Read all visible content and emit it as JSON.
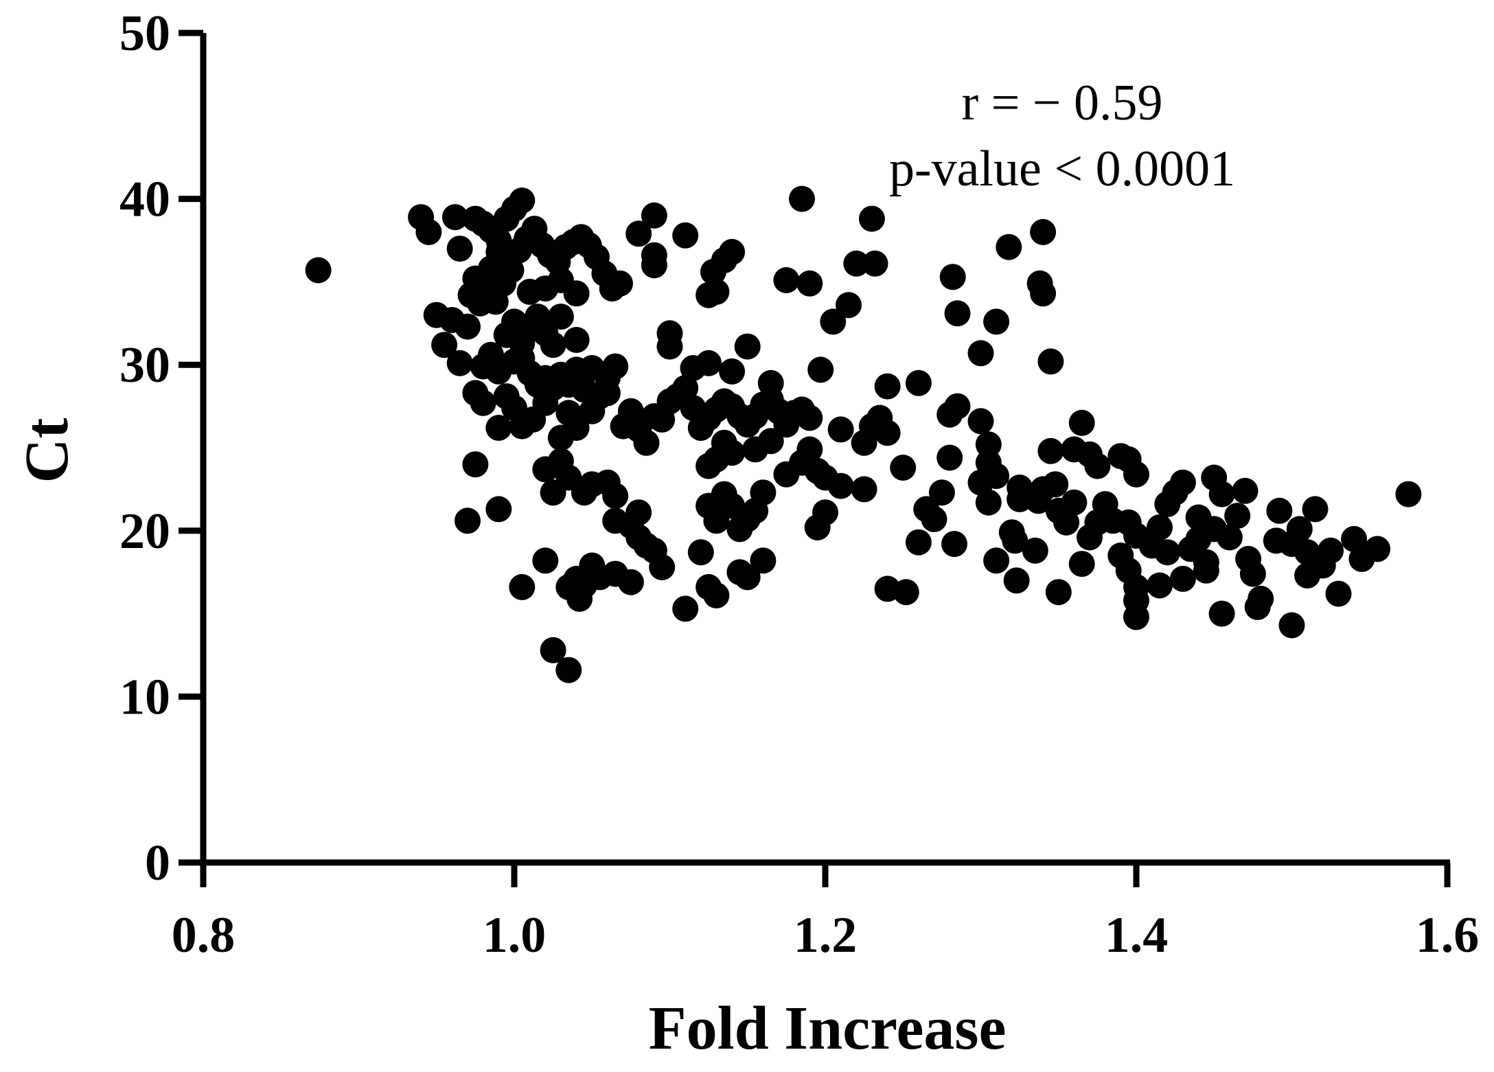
{
  "chart_data": {
    "type": "scatter",
    "xlabel": "Fold Increase",
    "ylabel": "Ct",
    "xlim": [
      0.8,
      1.6
    ],
    "ylim": [
      0,
      50
    ],
    "xticks": [
      "0.8",
      "1.0",
      "1.2",
      "1.4",
      "1.6"
    ],
    "yticks": [
      "0",
      "10",
      "20",
      "30",
      "40",
      "50"
    ],
    "grid": false,
    "point_color": "#000000",
    "annotations": [
      "r = − 0.59",
      "p-value < 0.0001"
    ],
    "points": [
      [
        0.874,
        35.7
      ],
      [
        0.94,
        38.9
      ],
      [
        0.945,
        38
      ],
      [
        0.962,
        38.9
      ],
      [
        0.965,
        37
      ],
      [
        0.975,
        38.8
      ],
      [
        0.98,
        38.5
      ],
      [
        0.985,
        38.1
      ],
      [
        0.99,
        37.5
      ],
      [
        0.995,
        38.8
      ],
      [
        1.0,
        39.4
      ],
      [
        1.005,
        39.9
      ],
      [
        0.99,
        36.8
      ],
      [
        0.985,
        35.8
      ],
      [
        0.98,
        34.9
      ],
      [
        0.975,
        35.2
      ],
      [
        0.972,
        34.2
      ],
      [
        0.978,
        33.7
      ],
      [
        0.988,
        33.8
      ],
      [
        0.993,
        34.9
      ],
      [
        0.998,
        35.7
      ],
      [
        1.003,
        36.9
      ],
      [
        1.008,
        37.6
      ],
      [
        1.013,
        38.2
      ],
      [
        1.018,
        37.2
      ],
      [
        1.023,
        36.6
      ],
      [
        1.028,
        36.2
      ],
      [
        1.033,
        37.1
      ],
      [
        1.038,
        37.4
      ],
      [
        1.043,
        37.7
      ],
      [
        1.048,
        37.2
      ],
      [
        1.053,
        36.5
      ],
      [
        1.058,
        35.5
      ],
      [
        1.063,
        34.6
      ],
      [
        1.068,
        34.9
      ],
      [
        1.04,
        34.3
      ],
      [
        1.03,
        35.1
      ],
      [
        1.02,
        34.6
      ],
      [
        1.01,
        34.4
      ],
      [
        1.0,
        32.6
      ],
      [
        0.995,
        31.8
      ],
      [
        1.005,
        31.3
      ],
      [
        1.01,
        32.2
      ],
      [
        1.015,
        32.9
      ],
      [
        1.02,
        31.9
      ],
      [
        1.025,
        31.2
      ],
      [
        1.03,
        32.9
      ],
      [
        1.0,
        30.2
      ],
      [
        0.99,
        29.6
      ],
      [
        0.985,
        30.6
      ],
      [
        0.98,
        29.9
      ],
      [
        1.005,
        30.4
      ],
      [
        1.01,
        29.5
      ],
      [
        1.015,
        28.8
      ],
      [
        1.02,
        29.2
      ],
      [
        1.025,
        28.6
      ],
      [
        1.03,
        29.4
      ],
      [
        1.035,
        28.8
      ],
      [
        1.04,
        29.7
      ],
      [
        1.045,
        28.5
      ],
      [
        1.05,
        29.8
      ],
      [
        1.055,
        28.1
      ],
      [
        1.06,
        29.2
      ],
      [
        1.065,
        29.9
      ],
      [
        1.04,
        31.5
      ],
      [
        0.95,
        33
      ],
      [
        0.955,
        31.2
      ],
      [
        0.96,
        32.7
      ],
      [
        0.965,
        30.1
      ],
      [
        0.97,
        32.3
      ],
      [
        0.975,
        28.3
      ],
      [
        0.98,
        27.7
      ],
      [
        0.99,
        26.2
      ],
      [
        0.995,
        28.1
      ],
      [
        1.0,
        27.4
      ],
      [
        1.005,
        26.3
      ],
      [
        1.012,
        26.7
      ],
      [
        1.02,
        27.7
      ],
      [
        1.03,
        25.6
      ],
      [
        1.035,
        27.1
      ],
      [
        1.04,
        26.2
      ],
      [
        1.05,
        27.2
      ],
      [
        1.06,
        28.3
      ],
      [
        1.07,
        26.3
      ],
      [
        1.075,
        27.2
      ],
      [
        1.08,
        26.1
      ],
      [
        1.085,
        25.3
      ],
      [
        1.09,
        26.9
      ],
      [
        1.095,
        26.7
      ],
      [
        1.1,
        27.8
      ],
      [
        1.105,
        28.1
      ],
      [
        1.11,
        28.6
      ],
      [
        1.115,
        27.4
      ],
      [
        1.12,
        26.2
      ],
      [
        1.125,
        26.8
      ],
      [
        1.13,
        27.3
      ],
      [
        1.135,
        27.8
      ],
      [
        1.14,
        27.5
      ],
      [
        1.145,
        26.9
      ],
      [
        1.15,
        26.4
      ],
      [
        1.155,
        26.9
      ],
      [
        1.16,
        27.6
      ],
      [
        1.165,
        27.9
      ],
      [
        1.17,
        27.2
      ],
      [
        1.175,
        26.4
      ],
      [
        1.18,
        27.1
      ],
      [
        1.185,
        27.3
      ],
      [
        1.19,
        26.8
      ],
      [
        1.165,
        28.9
      ],
      [
        1.1,
        31.9
      ],
      [
        1.1,
        31.1
      ],
      [
        1.115,
        29.8
      ],
      [
        1.125,
        30.1
      ],
      [
        1.14,
        29.6
      ],
      [
        1.15,
        31.1
      ],
      [
        1.08,
        37.9
      ],
      [
        1.09,
        39
      ],
      [
        1.09,
        36.6
      ],
      [
        1.09,
        36
      ],
      [
        1.11,
        37.8
      ],
      [
        1.125,
        34.2
      ],
      [
        1.128,
        35.6
      ],
      [
        1.13,
        34.4
      ],
      [
        1.135,
        36.3
      ],
      [
        1.14,
        36.8
      ],
      [
        1.175,
        35.1
      ],
      [
        1.185,
        40
      ],
      [
        1.19,
        34.9
      ],
      [
        1.205,
        32.6
      ],
      [
        1.215,
        33.6
      ],
      [
        1.22,
        36.1
      ],
      [
        1.23,
        38.8
      ],
      [
        1.232,
        36.1
      ],
      [
        1.197,
        29.7
      ],
      [
        0.975,
        24
      ],
      [
        0.97,
        20.6
      ],
      [
        0.99,
        21.3
      ],
      [
        1.02,
        23.7
      ],
      [
        1.025,
        22.3
      ],
      [
        1.03,
        24.2
      ],
      [
        1.035,
        23.2
      ],
      [
        1.045,
        22.3
      ],
      [
        1.05,
        22.8
      ],
      [
        1.06,
        22.9
      ],
      [
        1.065,
        22.1
      ],
      [
        1.065,
        20.6
      ],
      [
        1.075,
        20.3
      ],
      [
        1.08,
        21.1
      ],
      [
        1.08,
        19.6
      ],
      [
        1.085,
        19.1
      ],
      [
        1.09,
        18.8
      ],
      [
        1.095,
        17.8
      ],
      [
        1.12,
        18.7
      ],
      [
        1.125,
        21.5
      ],
      [
        1.13,
        20.6
      ],
      [
        1.135,
        22.2
      ],
      [
        1.14,
        21.5
      ],
      [
        1.145,
        20.1
      ],
      [
        1.15,
        20.7
      ],
      [
        1.155,
        21.2
      ],
      [
        1.16,
        22.3
      ],
      [
        1.125,
        23.9
      ],
      [
        1.13,
        24.3
      ],
      [
        1.135,
        25.3
      ],
      [
        1.14,
        24.7
      ],
      [
        1.155,
        24.9
      ],
      [
        1.165,
        25.4
      ],
      [
        1.175,
        23.4
      ],
      [
        1.185,
        24.1
      ],
      [
        1.19,
        24.9
      ],
      [
        1.195,
        23.6
      ],
      [
        1.2,
        23.2
      ],
      [
        1.21,
        22.7
      ],
      [
        1.225,
        22.5
      ],
      [
        1.21,
        26.1
      ],
      [
        1.225,
        25.3
      ],
      [
        1.23,
        26.3
      ],
      [
        1.235,
        26.8
      ],
      [
        1.24,
        25.9
      ],
      [
        1.24,
        28.7
      ],
      [
        1.2,
        21.1
      ],
      [
        1.195,
        20.2
      ],
      [
        1.02,
        18.2
      ],
      [
        1.005,
        16.6
      ],
      [
        1.025,
        12.8
      ],
      [
        1.035,
        11.6
      ],
      [
        1.035,
        16.6
      ],
      [
        1.04,
        17.1
      ],
      [
        1.042,
        15.9
      ],
      [
        1.045,
        16.7
      ],
      [
        1.05,
        17.9
      ],
      [
        1.055,
        17.2
      ],
      [
        1.065,
        17.4
      ],
      [
        1.075,
        16.9
      ],
      [
        1.11,
        15.3
      ],
      [
        1.125,
        16.6
      ],
      [
        1.13,
        16.1
      ],
      [
        1.15,
        17.2
      ],
      [
        1.16,
        18.2
      ],
      [
        1.145,
        17.5
      ],
      [
        1.24,
        16.5
      ],
      [
        1.252,
        16.3
      ],
      [
        1.25,
        23.8
      ],
      [
        1.26,
        28.9
      ],
      [
        1.26,
        19.3
      ],
      [
        1.265,
        21.3
      ],
      [
        1.27,
        20.7
      ],
      [
        1.275,
        22.3
      ],
      [
        1.28,
        24.4
      ],
      [
        1.28,
        27
      ],
      [
        1.285,
        27.5
      ],
      [
        1.282,
        35.3
      ],
      [
        1.285,
        33.1
      ],
      [
        1.283,
        19.2
      ],
      [
        1.3,
        30.7
      ],
      [
        1.3,
        26.6
      ],
      [
        1.305,
        25.2
      ],
      [
        1.305,
        24.1
      ],
      [
        1.3,
        22.9
      ],
      [
        1.305,
        21.7
      ],
      [
        1.31,
        23.3
      ],
      [
        1.31,
        18.2
      ],
      [
        1.31,
        32.6
      ],
      [
        1.318,
        37.1
      ],
      [
        1.325,
        22.6
      ],
      [
        1.325,
        21.9
      ],
      [
        1.32,
        19.9
      ],
      [
        1.322,
        19.4
      ],
      [
        1.323,
        17
      ],
      [
        1.335,
        18.8
      ],
      [
        1.337,
        21.8
      ],
      [
        1.34,
        22.5
      ],
      [
        1.34,
        38
      ],
      [
        1.338,
        34.9
      ],
      [
        1.34,
        34.3
      ],
      [
        1.345,
        30.2
      ],
      [
        1.345,
        24.8
      ],
      [
        1.348,
        22.8
      ],
      [
        1.35,
        21.2
      ],
      [
        1.355,
        20.5
      ],
      [
        1.36,
        21.7
      ],
      [
        1.35,
        16.3
      ],
      [
        1.36,
        24.9
      ],
      [
        1.365,
        26.5
      ],
      [
        1.37,
        24.6
      ],
      [
        1.375,
        23.9
      ],
      [
        1.38,
        21.6
      ],
      [
        1.385,
        20.6
      ],
      [
        1.365,
        18
      ],
      [
        1.39,
        24.5
      ],
      [
        1.395,
        24.3
      ],
      [
        1.4,
        23.4
      ],
      [
        1.395,
        20.5
      ],
      [
        1.4,
        19.7
      ],
      [
        1.39,
        18.5
      ],
      [
        1.395,
        17.6
      ],
      [
        1.4,
        16.6
      ],
      [
        1.4,
        15.8
      ],
      [
        1.4,
        14.8
      ],
      [
        1.41,
        19.1
      ],
      [
        1.42,
        21.6
      ],
      [
        1.425,
        22.3
      ],
      [
        1.43,
        22.9
      ],
      [
        1.44,
        20.8
      ],
      [
        1.43,
        17.1
      ],
      [
        1.415,
        16.7
      ],
      [
        1.435,
        18.9
      ],
      [
        1.44,
        19.5
      ],
      [
        1.445,
        17.6
      ],
      [
        1.445,
        18.1
      ],
      [
        1.45,
        23.2
      ],
      [
        1.455,
        22.2
      ],
      [
        1.45,
        20.1
      ],
      [
        1.46,
        19.6
      ],
      [
        1.465,
        20.9
      ],
      [
        1.47,
        22.4
      ],
      [
        1.455,
        15
      ],
      [
        1.472,
        18.3
      ],
      [
        1.475,
        17.4
      ],
      [
        1.478,
        15.4
      ],
      [
        1.48,
        15.9
      ],
      [
        1.492,
        21.2
      ],
      [
        1.5,
        19.2
      ],
      [
        1.5,
        14.3
      ],
      [
        1.505,
        20.1
      ],
      [
        1.51,
        18.7
      ],
      [
        1.51,
        17.3
      ],
      [
        1.515,
        21.3
      ],
      [
        1.52,
        17.9
      ],
      [
        1.525,
        18.8
      ],
      [
        1.53,
        16.2
      ],
      [
        1.54,
        19.5
      ],
      [
        1.545,
        18.3
      ],
      [
        1.555,
        18.9
      ],
      [
        1.575,
        22.2
      ],
      [
        1.49,
        19.4
      ],
      [
        1.42,
        18.7
      ],
      [
        1.415,
        20.2
      ],
      [
        1.37,
        19.6
      ],
      [
        1.375,
        20.5
      ]
    ]
  }
}
